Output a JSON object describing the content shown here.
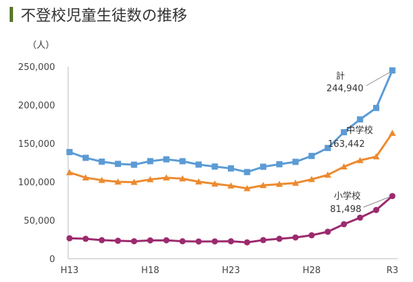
{
  "chart_data": {
    "type": "line",
    "title": "不登校児童生徒数の推移",
    "ylabel": "（人）",
    "ylim": [
      0,
      250000
    ],
    "yticks": [
      "0",
      "50,000",
      "100,000",
      "150,000",
      "200,000",
      "250,000"
    ],
    "x": [
      "H13",
      "H14",
      "H15",
      "H16",
      "H17",
      "H18",
      "H19",
      "H20",
      "H21",
      "H22",
      "H23",
      "H24",
      "H25",
      "H26",
      "H27",
      "H28",
      "H29",
      "H30",
      "R1",
      "R2",
      "R3"
    ],
    "xtick_labels": [
      "H13",
      "H18",
      "H23",
      "H28",
      "R3"
    ],
    "grid": false,
    "series": [
      {
        "name": "計",
        "value_label": "244,940",
        "color": "#5b9bd5",
        "marker": "square",
        "values": [
          138722,
          131252,
          126226,
          123358,
          122287,
          126894,
          129255,
          126805,
          122432,
          119891,
          117458,
          112689,
          119617,
          122897,
          125991,
          133683,
          144031,
          164528,
          181272,
          196127,
          244940
        ]
      },
      {
        "name": "中学校",
        "value_label": "163,442",
        "color": "#ed8a2f",
        "marker": "triangle",
        "values": [
          112211,
          105383,
          102149,
          100040,
          99578,
          103069,
          105328,
          104153,
          100105,
          97428,
          94836,
          91446,
          95442,
          97033,
          98408,
          103235,
          108999,
          119687,
          127922,
          132777,
          163442
        ]
      },
      {
        "name": "小学校",
        "value_label": "81,498",
        "color": "#9c2a6e",
        "marker": "circle",
        "values": [
          26511,
          25869,
          24077,
          23318,
          22709,
          23825,
          23927,
          22652,
          22327,
          22463,
          22622,
          21243,
          24175,
          25864,
          27583,
          30448,
          35032,
          44841,
          53350,
          63350,
          81498
        ]
      }
    ]
  }
}
